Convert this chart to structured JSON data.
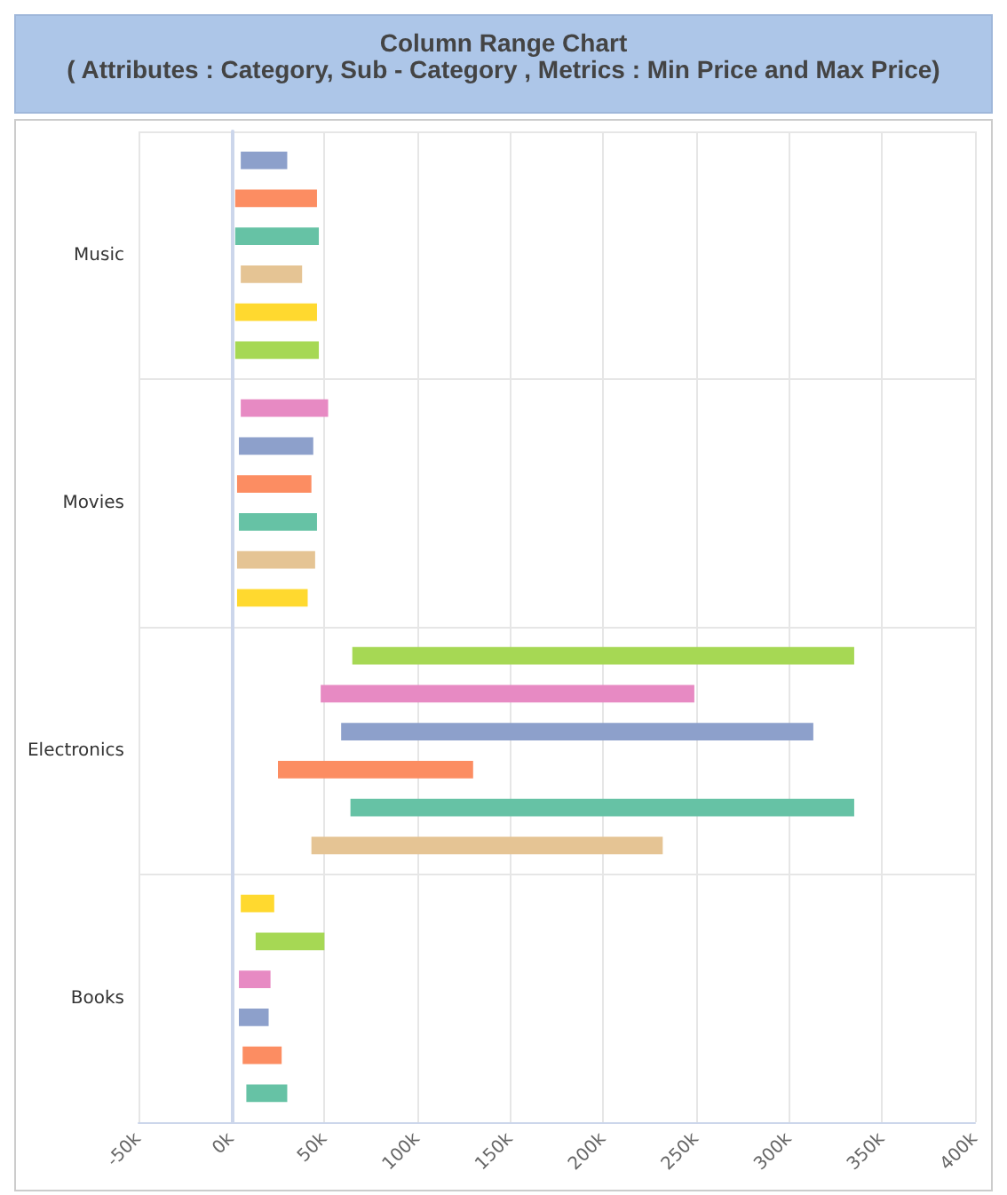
{
  "chart_data": {
    "type": "bar",
    "orientation": "horizontal",
    "title": "Column Range Chart",
    "subtitle": "( Attributes : Category, Sub - Category , Metrics : Min Price and Max Price)",
    "categories": [
      "Music",
      "Movies",
      "Electronics",
      "Books"
    ],
    "series": [
      {
        "colors": [
          "#8da0cb",
          "#e78ac3",
          "#a6d854",
          "#ffd92f"
        ],
        "base": [
          5000,
          5000,
          65000,
          5000
        ],
        "values": [
          25000,
          47000,
          270000,
          18000
        ]
      },
      {
        "colors": [
          "#fc8d62",
          "#8da0cb",
          "#e78ac3",
          "#a6d854"
        ],
        "base": [
          2000,
          4000,
          48000,
          13000
        ],
        "values": [
          44000,
          40000,
          201000,
          37000
        ]
      },
      {
        "colors": [
          "#66c2a5",
          "#fc8d62",
          "#8da0cb",
          "#e78ac3"
        ],
        "base": [
          2000,
          3000,
          59000,
          4000
        ],
        "values": [
          45000,
          40000,
          254000,
          17000
        ]
      },
      {
        "colors": [
          "#e5c494",
          "#66c2a5",
          "#fc8d62",
          "#8da0cb"
        ],
        "base": [
          5000,
          4000,
          25000,
          4000
        ],
        "values": [
          33000,
          42000,
          105000,
          16000
        ]
      },
      {
        "colors": [
          "#ffd92f",
          "#e5c494",
          "#66c2a5",
          "#fc8d62"
        ],
        "base": [
          2000,
          3000,
          64000,
          6000
        ],
        "values": [
          44000,
          42000,
          271000,
          21000
        ]
      },
      {
        "colors": [
          "#a6d854",
          "#ffd92f",
          "#e5c494",
          "#66c2a5"
        ],
        "base": [
          2000,
          3000,
          43000,
          8000
        ],
        "values": [
          45000,
          38000,
          189000,
          22000
        ]
      }
    ],
    "xlim": [
      -50000,
      400000
    ],
    "xticks": [
      {
        "value": -50000,
        "label": "-50k"
      },
      {
        "value": 0,
        "label": "0k"
      },
      {
        "value": 50000,
        "label": "50k"
      },
      {
        "value": 100000,
        "label": "100k"
      },
      {
        "value": 150000,
        "label": "150k"
      },
      {
        "value": 200000,
        "label": "200k"
      },
      {
        "value": 250000,
        "label": "250k"
      },
      {
        "value": 300000,
        "label": "300k"
      },
      {
        "value": 350000,
        "label": "350k"
      },
      {
        "value": 400000,
        "label": "400k"
      }
    ],
    "grid": true
  }
}
